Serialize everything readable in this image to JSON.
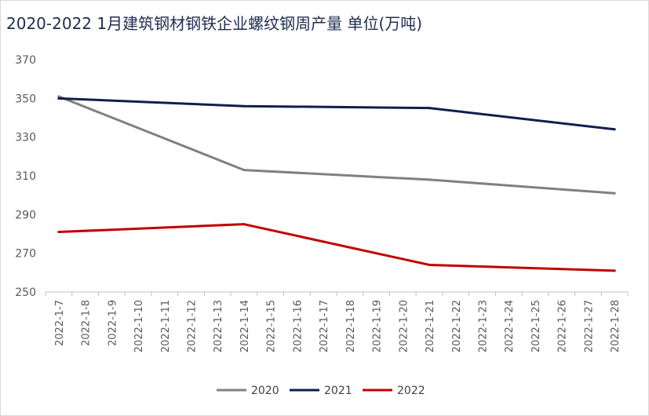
{
  "chart_data": {
    "type": "line",
    "title": "2020-2022 1月建筑钢材钢铁企业螺纹钢周产量 单位(万吨)",
    "categories": [
      "2022-1-7",
      "2022-1-8",
      "2022-1-9",
      "2022-1-10",
      "2022-1-11",
      "2022-1-12",
      "2022-1-13",
      "2022-1-14",
      "2022-1-15",
      "2022-1-16",
      "2022-1-17",
      "2022-1-18",
      "2022-1-19",
      "2022-1-20",
      "2022-1-21",
      "2022-1-22",
      "2022-1-23",
      "2022-1-24",
      "2022-1-25",
      "2022-1-26",
      "2022-1-27",
      "2022-1-28"
    ],
    "ylim": [
      250,
      370
    ],
    "yticks": [
      250,
      270,
      290,
      310,
      330,
      350,
      370
    ],
    "grid": false,
    "legend_position": "bottom",
    "series": [
      {
        "name": "2020",
        "color": "#808080",
        "points": [
          {
            "x": "2022-1-7",
            "y": 351
          },
          {
            "x": "2022-1-14",
            "y": 313
          },
          {
            "x": "2022-1-21",
            "y": 308
          },
          {
            "x": "2022-1-28",
            "y": 301
          }
        ]
      },
      {
        "name": "2021",
        "color": "#0e1f4f",
        "points": [
          {
            "x": "2022-1-7",
            "y": 350
          },
          {
            "x": "2022-1-14",
            "y": 346
          },
          {
            "x": "2022-1-21",
            "y": 345
          },
          {
            "x": "2022-1-28",
            "y": 334
          }
        ]
      },
      {
        "name": "2022",
        "color": "#c00000",
        "points": [
          {
            "x": "2022-1-7",
            "y": 281
          },
          {
            "x": "2022-1-14",
            "y": 285
          },
          {
            "x": "2022-1-21",
            "y": 264
          },
          {
            "x": "2022-1-28",
            "y": 261
          }
        ]
      }
    ]
  }
}
